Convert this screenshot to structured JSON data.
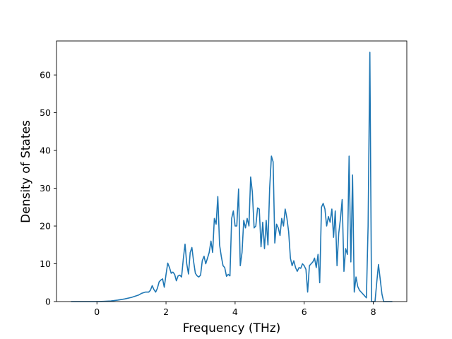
{
  "chart_data": {
    "type": "line",
    "title": "",
    "xlabel": "Frequency (THz)",
    "ylabel": "Density of States",
    "xlim": [
      -1.17,
      8.97
    ],
    "ylim": [
      0,
      69
    ],
    "xticks": [
      0,
      2,
      4,
      6,
      8
    ],
    "yticks": [
      0,
      10,
      20,
      30,
      40,
      50,
      60
    ],
    "grid": false,
    "legend": "none",
    "color": "#1f77b4",
    "series": [
      {
        "points": [
          [
            -0.75,
            0
          ],
          [
            -0.4,
            0
          ],
          [
            0.0,
            0
          ],
          [
            0.2,
            0.05
          ],
          [
            0.4,
            0.15
          ],
          [
            0.6,
            0.4
          ],
          [
            0.8,
            0.7
          ],
          [
            1.0,
            1.1
          ],
          [
            1.2,
            1.7
          ],
          [
            1.3,
            2.2
          ],
          [
            1.4,
            2.5
          ],
          [
            1.5,
            2.5
          ],
          [
            1.55,
            3.0
          ],
          [
            1.6,
            4.2
          ],
          [
            1.65,
            3.2
          ],
          [
            1.7,
            2.5
          ],
          [
            1.75,
            3.5
          ],
          [
            1.8,
            5.2
          ],
          [
            1.85,
            5.7
          ],
          [
            1.9,
            6.0
          ],
          [
            1.95,
            3.8
          ],
          [
            2.0,
            7.2
          ],
          [
            2.05,
            10.2
          ],
          [
            2.1,
            9.0
          ],
          [
            2.15,
            7.5
          ],
          [
            2.2,
            7.8
          ],
          [
            2.25,
            7.2
          ],
          [
            2.3,
            5.5
          ],
          [
            2.35,
            6.8
          ],
          [
            2.4,
            7.0
          ],
          [
            2.45,
            6.5
          ],
          [
            2.5,
            11.2
          ],
          [
            2.55,
            15.2
          ],
          [
            2.6,
            10.0
          ],
          [
            2.65,
            7.3
          ],
          [
            2.7,
            13.0
          ],
          [
            2.75,
            14.3
          ],
          [
            2.8,
            10.5
          ],
          [
            2.85,
            7.5
          ],
          [
            2.9,
            6.8
          ],
          [
            2.95,
            6.5
          ],
          [
            3.0,
            7.0
          ],
          [
            3.05,
            10.8
          ],
          [
            3.1,
            12.0
          ],
          [
            3.15,
            10.0
          ],
          [
            3.2,
            11.5
          ],
          [
            3.25,
            13.0
          ],
          [
            3.3,
            16.0
          ],
          [
            3.35,
            13.0
          ],
          [
            3.4,
            22.0
          ],
          [
            3.45,
            20.5
          ],
          [
            3.5,
            27.8
          ],
          [
            3.55,
            15.0
          ],
          [
            3.6,
            12.0
          ],
          [
            3.65,
            9.5
          ],
          [
            3.7,
            9.0
          ],
          [
            3.75,
            6.7
          ],
          [
            3.8,
            7.2
          ],
          [
            3.85,
            6.8
          ],
          [
            3.9,
            22.0
          ],
          [
            3.95,
            24.0
          ],
          [
            4.0,
            20.0
          ],
          [
            4.05,
            20.0
          ],
          [
            4.1,
            29.8
          ],
          [
            4.15,
            9.5
          ],
          [
            4.2,
            13.0
          ],
          [
            4.25,
            21.5
          ],
          [
            4.3,
            19.5
          ],
          [
            4.35,
            22.0
          ],
          [
            4.4,
            20.0
          ],
          [
            4.45,
            33.0
          ],
          [
            4.5,
            29.0
          ],
          [
            4.55,
            19.5
          ],
          [
            4.6,
            20.0
          ],
          [
            4.65,
            24.8
          ],
          [
            4.7,
            24.5
          ],
          [
            4.75,
            14.5
          ],
          [
            4.8,
            21.0
          ],
          [
            4.85,
            14.0
          ],
          [
            4.9,
            21.5
          ],
          [
            4.95,
            15.0
          ],
          [
            5.0,
            30.0
          ],
          [
            5.05,
            38.5
          ],
          [
            5.1,
            37.0
          ],
          [
            5.15,
            15.5
          ],
          [
            5.2,
            20.5
          ],
          [
            5.25,
            19.5
          ],
          [
            5.3,
            17.5
          ],
          [
            5.35,
            22.0
          ],
          [
            5.4,
            20.0
          ],
          [
            5.45,
            24.5
          ],
          [
            5.5,
            22.0
          ],
          [
            5.55,
            18.5
          ],
          [
            5.6,
            11.5
          ],
          [
            5.65,
            9.5
          ],
          [
            5.7,
            10.8
          ],
          [
            5.75,
            9.0
          ],
          [
            5.8,
            8.0
          ],
          [
            5.85,
            9.0
          ],
          [
            5.9,
            8.8
          ],
          [
            5.95,
            10.0
          ],
          [
            6.0,
            9.5
          ],
          [
            6.05,
            8.5
          ],
          [
            6.1,
            2.5
          ],
          [
            6.15,
            9.5
          ],
          [
            6.2,
            10.0
          ],
          [
            6.25,
            10.5
          ],
          [
            6.3,
            11.5
          ],
          [
            6.35,
            9.0
          ],
          [
            6.4,
            12.5
          ],
          [
            6.45,
            5.0
          ],
          [
            6.5,
            25.0
          ],
          [
            6.55,
            26.0
          ],
          [
            6.6,
            24.5
          ],
          [
            6.65,
            20.0
          ],
          [
            6.7,
            22.5
          ],
          [
            6.75,
            21.0
          ],
          [
            6.8,
            24.5
          ],
          [
            6.85,
            17.0
          ],
          [
            6.9,
            24.0
          ],
          [
            6.95,
            9.5
          ],
          [
            7.0,
            18.0
          ],
          [
            7.05,
            22.0
          ],
          [
            7.1,
            27.0
          ],
          [
            7.15,
            8.0
          ],
          [
            7.2,
            14.0
          ],
          [
            7.25,
            12.5
          ],
          [
            7.3,
            38.5
          ],
          [
            7.35,
            10.5
          ],
          [
            7.4,
            33.5
          ],
          [
            7.45,
            2.5
          ],
          [
            7.5,
            6.5
          ],
          [
            7.55,
            4.0
          ],
          [
            7.6,
            3.0
          ],
          [
            7.7,
            2.0
          ],
          [
            7.8,
            1.0
          ],
          [
            7.85,
            20.0
          ],
          [
            7.9,
            66.0
          ],
          [
            7.95,
            0.0
          ],
          [
            8.05,
            0.0
          ],
          [
            8.1,
            5.0
          ],
          [
            8.15,
            9.8
          ],
          [
            8.2,
            6.0
          ],
          [
            8.25,
            2.0
          ],
          [
            8.3,
            0
          ],
          [
            8.55,
            0
          ]
        ]
      }
    ]
  }
}
